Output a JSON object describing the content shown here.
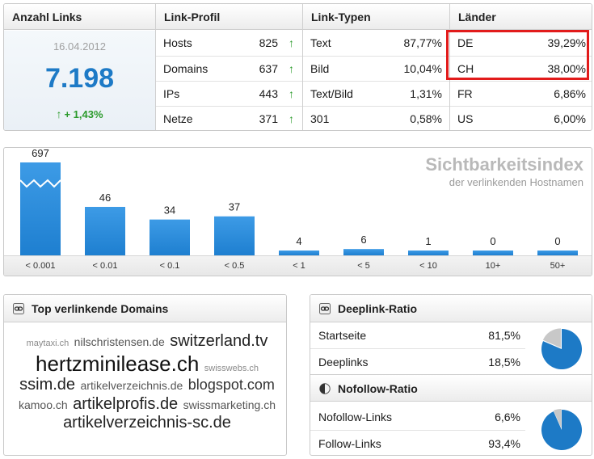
{
  "summary": {
    "anzahl": {
      "header": "Anzahl Links",
      "date": "16.04.2012",
      "count": "7.198",
      "growth_arrow": "↑",
      "growth": "+ 1,43%"
    },
    "link_profil": {
      "header": "Link-Profil",
      "rows": [
        {
          "label": "Hosts",
          "value": "825",
          "trend": "↑"
        },
        {
          "label": "Domains",
          "value": "637",
          "trend": "↑"
        },
        {
          "label": "IPs",
          "value": "443",
          "trend": "↑"
        },
        {
          "label": "Netze",
          "value": "371",
          "trend": "↑"
        }
      ]
    },
    "link_typen": {
      "header": "Link-Typen",
      "rows": [
        {
          "label": "Text",
          "value": "87,77%"
        },
        {
          "label": "Bild",
          "value": "10,04%"
        },
        {
          "label": "Text/Bild",
          "value": "1,31%"
        },
        {
          "label": "301",
          "value": "0,58%"
        }
      ]
    },
    "laender": {
      "header": "Länder",
      "rows": [
        {
          "label": "DE",
          "value": "39,29%"
        },
        {
          "label": "CH",
          "value": "38,00%"
        },
        {
          "label": "FR",
          "value": "6,86%"
        },
        {
          "label": "US",
          "value": "6,00%"
        }
      ],
      "highlight_color": "#e21b1b"
    }
  },
  "chart_data": {
    "type": "bar",
    "title": "Sichtbarkeitsindex",
    "subtitle": "der verlinkenden Hostnamen",
    "categories": [
      "< 0.001",
      "< 0.01",
      "< 0.1",
      "< 0.5",
      "< 1",
      "< 5",
      "< 10",
      "10+",
      "50+"
    ],
    "values": [
      697,
      46,
      34,
      37,
      4,
      6,
      1,
      0,
      0
    ],
    "broken_axis_first_bar": true,
    "bar_color": "#1e7fd0",
    "xlabel": "",
    "ylabel": "",
    "grid": false
  },
  "domains_panel": {
    "title": "Top verlinkende Domains",
    "icon": "link-icon",
    "cloud": [
      {
        "text": "maytaxi.ch",
        "size": 1
      },
      {
        "text": "nilschristensen.de",
        "size": 2
      },
      {
        "text": "switzerland.tv",
        "size": 4
      },
      {
        "text": "hertzminilease.ch",
        "size": 5
      },
      {
        "text": "swisswebs.ch",
        "size": 1
      },
      {
        "text": "ssim.de",
        "size": 4
      },
      {
        "text": "artikelverzeichnis.de",
        "size": 2
      },
      {
        "text": "blogspot.com",
        "size": 3
      },
      {
        "text": "kamoo.ch",
        "size": 2
      },
      {
        "text": "artikelprofis.de",
        "size": 4
      },
      {
        "text": "swissmarketing.ch",
        "size": 2
      },
      {
        "text": "artikelverzeichnis-sc.de",
        "size": 4
      }
    ]
  },
  "deeplink_panel": {
    "title": "Deeplink-Ratio",
    "icon": "link-icon",
    "rows": [
      {
        "label": "Startseite",
        "value": "81,5%"
      },
      {
        "label": "Deeplinks",
        "value": "18,5%"
      }
    ],
    "pie_fraction": 0.815
  },
  "nofollow_panel": {
    "title": "Nofollow-Ratio",
    "icon": "half-circle-icon",
    "rows": [
      {
        "label": "Nofollow-Links",
        "value": "6,6%"
      },
      {
        "label": "Follow-Links",
        "value": "93,4%"
      }
    ],
    "pie_fraction": 0.934
  },
  "colors": {
    "accent_blue": "#1d7ac6",
    "positive_green": "#2a9a2a",
    "pie_grey": "#c8c8c8"
  }
}
